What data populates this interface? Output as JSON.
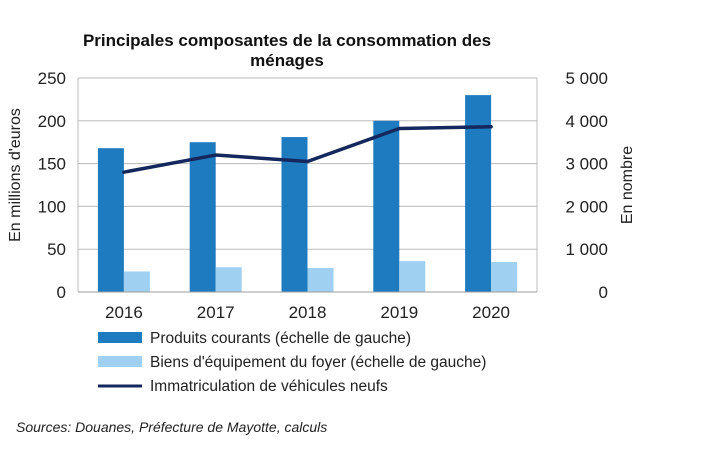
{
  "chart_data": {
    "type": "bar",
    "title": [
      "Principales composantes de la consommation des",
      "ménages"
    ],
    "categories": [
      "2016",
      "2017",
      "2018",
      "2019",
      "2020"
    ],
    "ylabel_left": "En millions d'euros",
    "ylabel_right": "En nombre",
    "ylim_left": [
      0,
      250
    ],
    "ylim_right": [
      0,
      5000
    ],
    "yticks_left": [
      "0",
      "50",
      "100",
      "150",
      "200",
      "250"
    ],
    "yticks_right": [
      "0",
      "1 000",
      "2 000",
      "3 000",
      "4 000",
      "5 000"
    ],
    "grid": true,
    "legend_position": "bottom",
    "series": [
      {
        "name": "Produits courants (échelle de gauche)",
        "type": "bar",
        "axis": "left",
        "color": "#1f7bc0",
        "values": [
          168,
          175,
          181,
          200,
          230
        ]
      },
      {
        "name": "Biens d'équipement du foyer (échelle de gauche)",
        "type": "bar",
        "axis": "left",
        "color": "#9fd0f2",
        "values": [
          24,
          29,
          28,
          36,
          35
        ]
      },
      {
        "name": "Immatriculation de véhicules neufs",
        "type": "line",
        "axis": "right",
        "color": "#14285e",
        "values": [
          2800,
          3200,
          3050,
          3820,
          3860
        ]
      }
    ]
  },
  "source_note": "Sources: Douanes, Préfecture de Mayotte, calculs"
}
